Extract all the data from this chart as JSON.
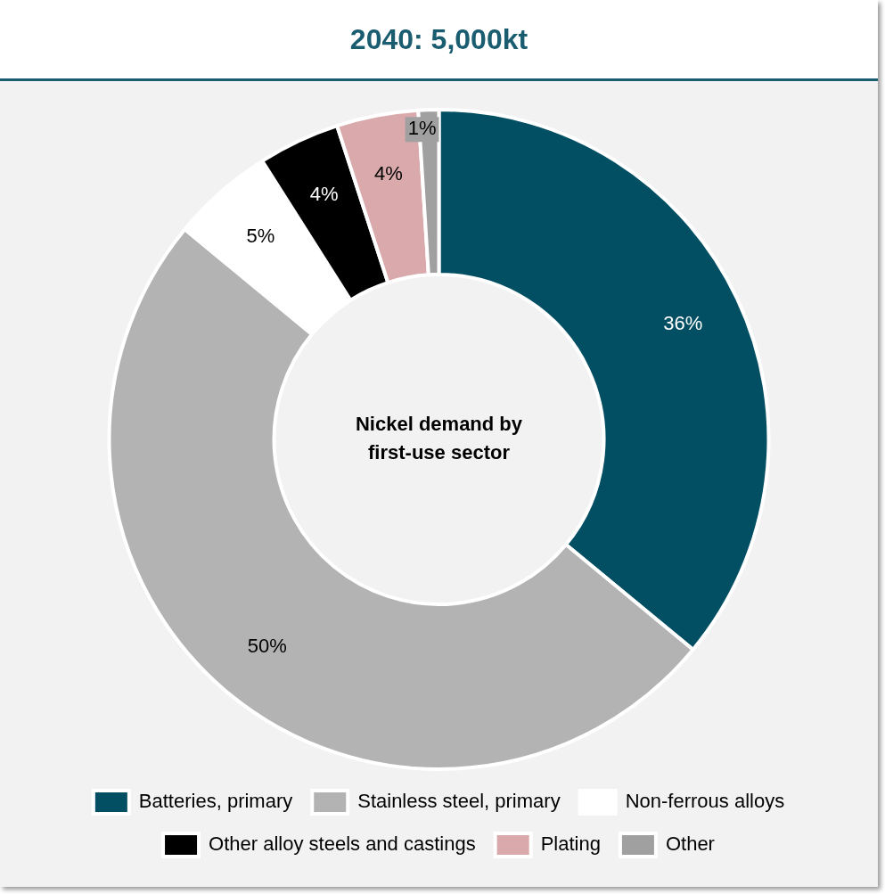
{
  "chart_data": {
    "type": "donut",
    "title": "2040: 5,000kt",
    "categories": [
      "Batteries, primary",
      "Stainless steel, primary",
      "Non-ferrous alloys",
      "Other alloy steels and castings",
      "Plating",
      "Other"
    ],
    "values": [
      36,
      50,
      5,
      4,
      4,
      1
    ],
    "colors": [
      "#024e63",
      "#b3b3b3",
      "#ffffff",
      "#000000",
      "#d9a9ab",
      "#a0a0a0"
    ],
    "value_labels": [
      "36%",
      "50%",
      "5%",
      "4%",
      "4%",
      "1%"
    ],
    "annotations": [
      "Nickel demand by first-use sector"
    ],
    "legend": "bottom"
  }
}
